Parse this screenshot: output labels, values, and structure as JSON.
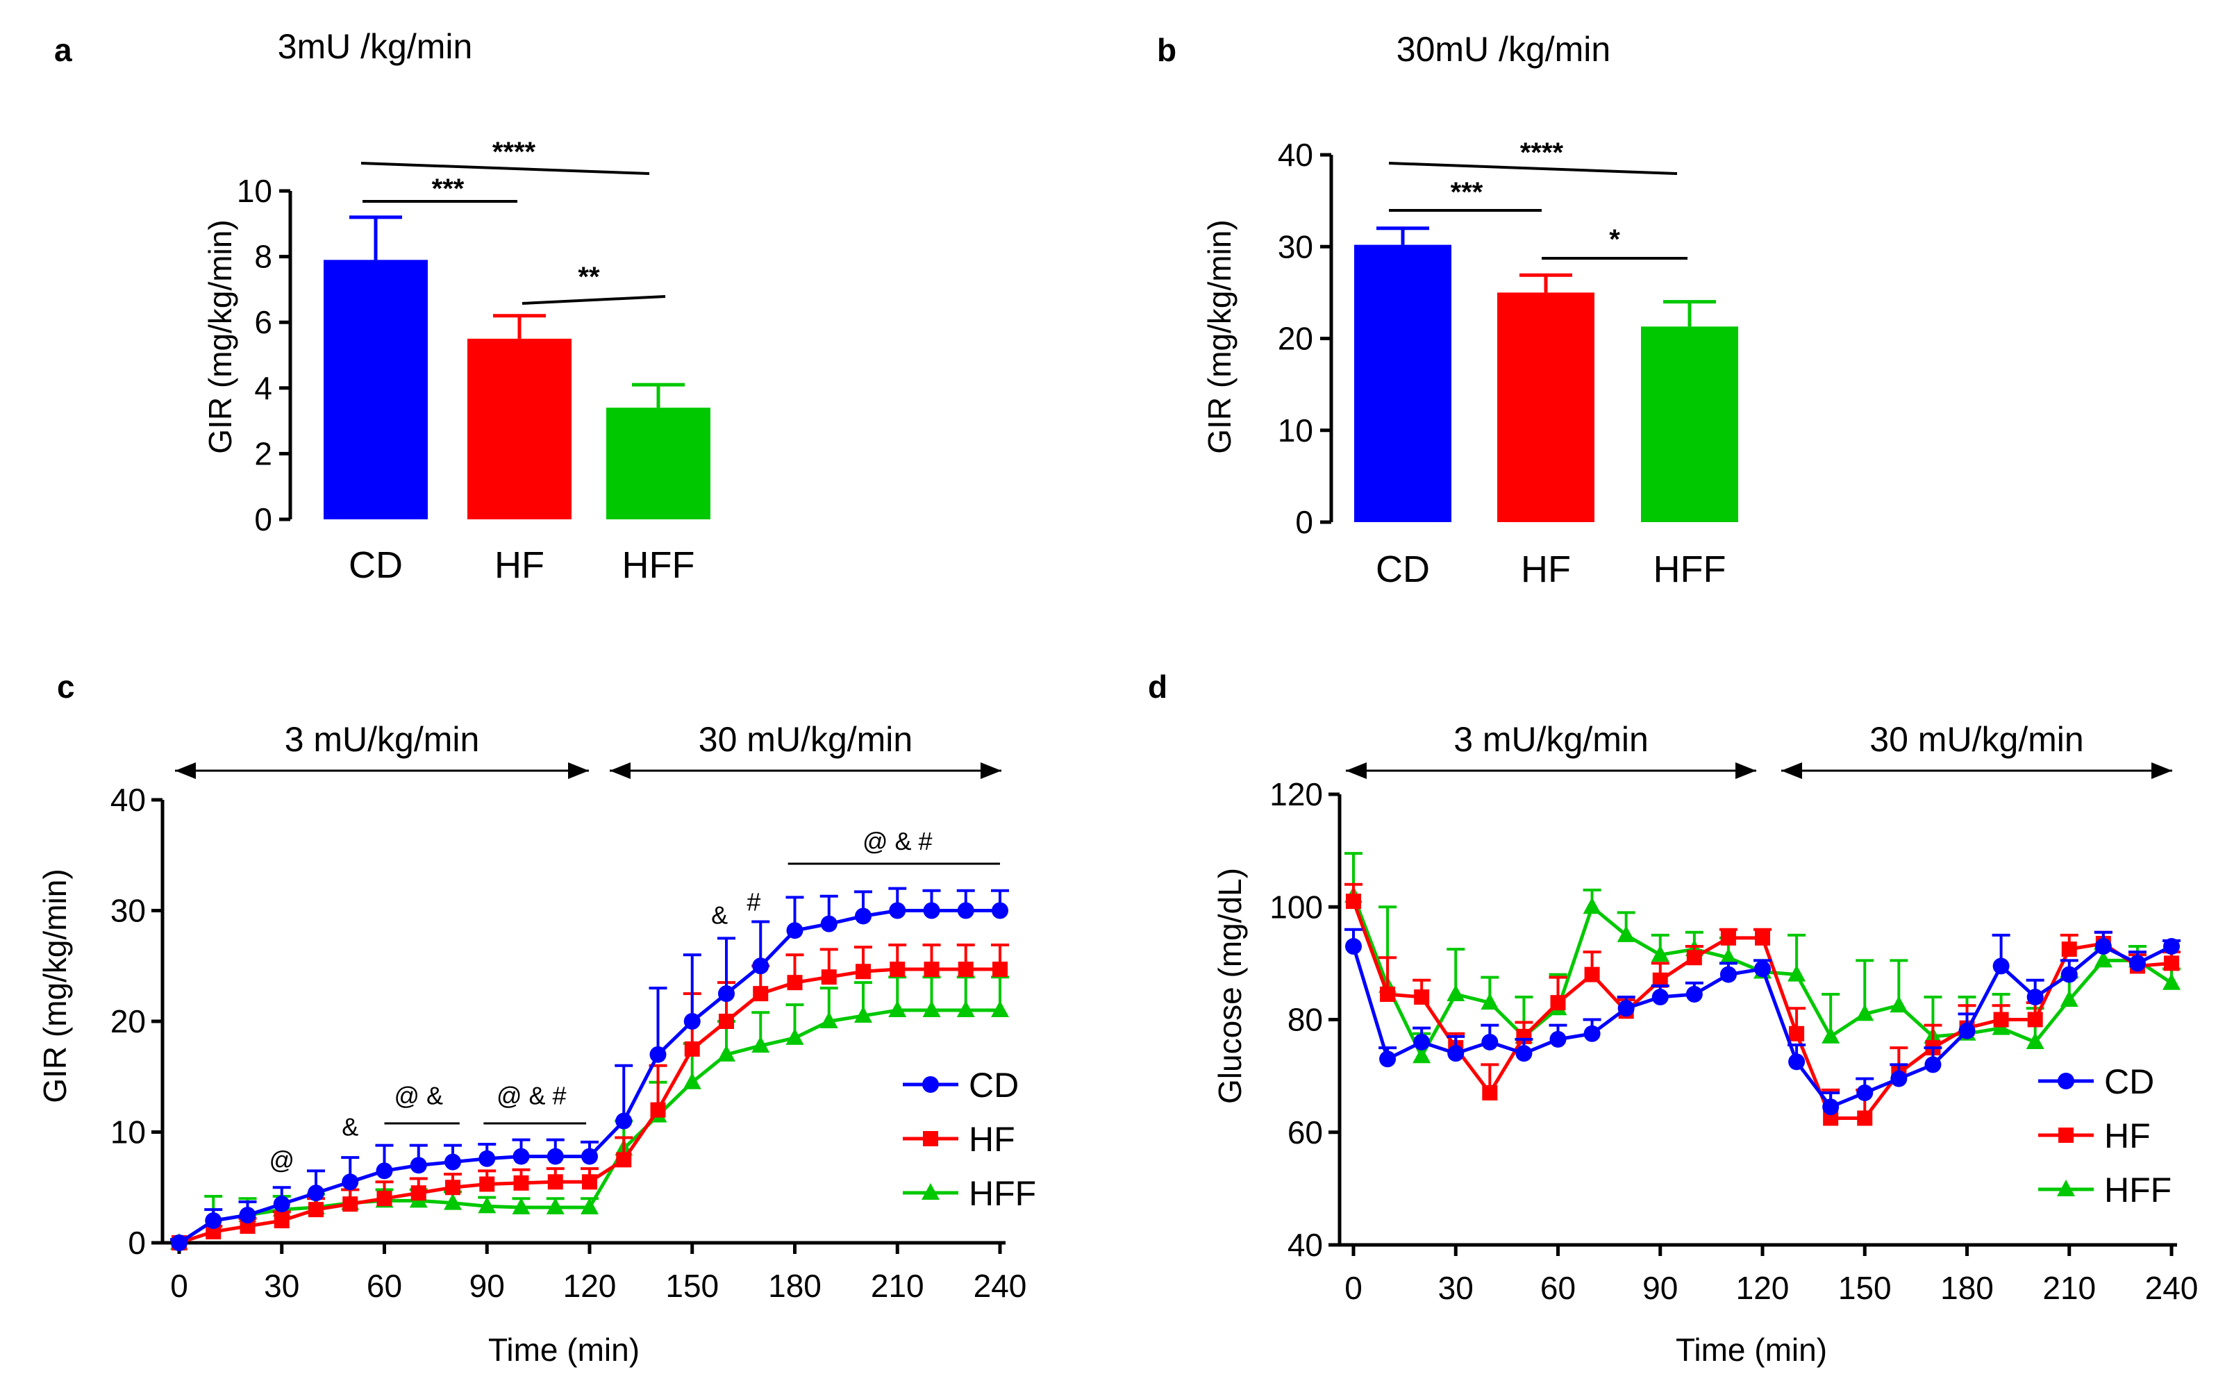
{
  "colors": {
    "CD": "#0000ff",
    "HF": "#ff0000",
    "HFF": "#00c800"
  },
  "chart_data": [
    {
      "panel": "a",
      "type": "bar",
      "title": "3mU /kg/min",
      "ylabel": "GIR (mg/kg/min)",
      "xlabel": "",
      "ylim": [
        0,
        10
      ],
      "yticks": [
        "0",
        "2",
        "4",
        "6",
        "8",
        "10"
      ],
      "categories": [
        "CD",
        "HF",
        "HFF"
      ],
      "values": [
        7.9,
        5.5,
        3.4
      ],
      "errors": [
        1.3,
        0.7,
        0.7
      ],
      "significance": [
        {
          "from": 0,
          "to": 1,
          "label": "***"
        },
        {
          "from": 0,
          "to": 2,
          "label": "****"
        },
        {
          "from": 1,
          "to": 2,
          "label": "**"
        }
      ]
    },
    {
      "panel": "b",
      "type": "bar",
      "title": "30mU /kg/min",
      "ylabel": "GIR (mg/kg/min)",
      "xlabel": "",
      "ylim": [
        0,
        40
      ],
      "yticks": [
        "0",
        "10",
        "20",
        "30",
        "40"
      ],
      "categories": [
        "CD",
        "HF",
        "HFF"
      ],
      "values": [
        30.2,
        25,
        21.3
      ],
      "errors": [
        1.8,
        1.9,
        2.7
      ],
      "significance": [
        {
          "from": 0,
          "to": 1,
          "label": "***"
        },
        {
          "from": 0,
          "to": 2,
          "label": "****"
        },
        {
          "from": 1,
          "to": 2,
          "label": "*"
        }
      ]
    },
    {
      "panel": "c",
      "type": "line",
      "title": "",
      "xlabel": "Time (min)",
      "ylabel": "GIR (mg/kg/min)",
      "xlim": [
        0,
        240
      ],
      "ylim": [
        0,
        40
      ],
      "xticks": [
        "0",
        "30",
        "60",
        "90",
        "120",
        "150",
        "180",
        "210",
        "240"
      ],
      "yticks": [
        "0",
        "10",
        "20",
        "30",
        "40"
      ],
      "phases": [
        {
          "label": "3 mU/kg/min",
          "from": 0,
          "to": 120
        },
        {
          "label": "30 mU/kg/min",
          "from": 125,
          "to": 240
        }
      ],
      "x": [
        0,
        10,
        20,
        30,
        40,
        50,
        60,
        70,
        80,
        90,
        100,
        110,
        120,
        130,
        140,
        150,
        160,
        170,
        180,
        190,
        200,
        210,
        220,
        230,
        240
      ],
      "series": [
        {
          "name": "CD",
          "values": [
            0,
            2,
            2.5,
            3.5,
            4.5,
            5.5,
            6.5,
            7,
            7.3,
            7.6,
            7.8,
            7.8,
            7.8,
            11,
            17,
            20,
            22.5,
            25,
            28.2,
            28.8,
            29.5,
            30,
            30,
            30,
            30
          ],
          "errors": [
            0.3,
            1,
            1.2,
            1.5,
            2,
            2.2,
            2.3,
            1.8,
            1.5,
            1.3,
            1.5,
            1.5,
            1.3,
            5,
            6,
            6,
            5,
            4,
            3,
            2.5,
            2.2,
            2,
            1.8,
            1.8,
            1.8
          ]
        },
        {
          "name": "HF",
          "values": [
            0,
            1,
            1.5,
            2,
            3,
            3.5,
            4,
            4.5,
            5,
            5.3,
            5.4,
            5.5,
            5.5,
            7.5,
            12,
            17.5,
            20,
            22.5,
            23.5,
            24,
            24.5,
            24.7,
            24.7,
            24.7,
            24.7
          ],
          "errors": [
            0.3,
            0.5,
            0.7,
            0.8,
            1,
            1.3,
            1.5,
            1.3,
            1.2,
            1.2,
            1.2,
            1.2,
            1.2,
            2,
            4,
            5,
            3.5,
            2.5,
            2.5,
            2.5,
            2.2,
            2.2,
            2.2,
            2.2,
            2.2
          ]
        },
        {
          "name": "HFF",
          "values": [
            0,
            2,
            2.5,
            3,
            3.2,
            3.6,
            3.8,
            3.8,
            3.6,
            3.3,
            3.2,
            3.2,
            3.2,
            8.5,
            11.5,
            14.5,
            17,
            17.8,
            18.5,
            20,
            20.5,
            21,
            21,
            21,
            21
          ],
          "errors": [
            0.3,
            2.2,
            1.5,
            1.2,
            1.2,
            1.2,
            1,
            1,
            1,
            0.8,
            0.8,
            0.8,
            0.8,
            2.5,
            3,
            3.5,
            3,
            3,
            3,
            3,
            3,
            3,
            3,
            3,
            3
          ]
        }
      ],
      "annotations": [
        {
          "x": 30,
          "y": 6.7,
          "label": "@"
        },
        {
          "x": 50,
          "y": 9.7,
          "label": "&"
        },
        {
          "x": 70,
          "y": 12.5,
          "label": "@ &"
        },
        {
          "x": 103,
          "y": 12.5,
          "label": "@ & #"
        },
        {
          "x": 158,
          "y": 28.8,
          "label": "&"
        },
        {
          "x": 168,
          "y": 30,
          "label": "#"
        },
        {
          "x": 210,
          "y": 35.5,
          "label": "@ & #"
        }
      ],
      "annotation_bars": [
        [
          60,
          82
        ],
        [
          89,
          119
        ],
        [
          178,
          240
        ]
      ],
      "legend": [
        "CD",
        "HF",
        "HFF"
      ],
      "legend_position": "lower-right"
    },
    {
      "panel": "d",
      "type": "line",
      "title": "",
      "xlabel": "Time (min)",
      "ylabel": "Glucose (mg/dL)",
      "xlim": [
        0,
        240
      ],
      "ylim": [
        40,
        120
      ],
      "xticks": [
        "0",
        "30",
        "60",
        "90",
        "120",
        "150",
        "180",
        "210",
        "240"
      ],
      "yticks": [
        "40",
        "60",
        "80",
        "100",
        "120"
      ],
      "phases": [
        {
          "label": "3 mU/kg/min",
          "from": 0,
          "to": 115
        },
        {
          "label": "30 mU/kg/min",
          "from": 125,
          "to": 240
        }
      ],
      "x": [
        0,
        10,
        20,
        30,
        40,
        50,
        60,
        70,
        80,
        90,
        100,
        110,
        120,
        130,
        140,
        150,
        160,
        170,
        180,
        190,
        200,
        210,
        220,
        230,
        240
      ],
      "series": [
        {
          "name": "CD",
          "values": [
            93,
            73,
            76,
            74,
            76,
            74,
            76.5,
            77.5,
            82,
            84,
            84.5,
            88,
            89,
            72.5,
            64.5,
            67,
            69.5,
            72,
            78,
            89.5,
            84,
            88,
            93,
            90,
            93
          ],
          "errors": [
            3,
            2,
            2.5,
            3,
            3,
            2.5,
            2.5,
            2.5,
            2,
            2,
            2,
            2,
            1.5,
            3,
            2.5,
            2.5,
            2.5,
            3,
            3,
            5.5,
            3,
            2.5,
            2.5,
            2,
            1
          ]
        },
        {
          "name": "HF",
          "values": [
            101,
            84.5,
            84,
            75,
            67,
            77,
            83,
            88,
            81.5,
            87,
            91,
            94.5,
            94.5,
            77.5,
            62.5,
            62.5,
            70.5,
            75,
            78.5,
            80,
            80,
            92.5,
            93.5,
            89.5,
            90
          ],
          "errors": [
            3,
            6.5,
            3,
            2.5,
            5,
            2.5,
            4.5,
            4,
            2,
            3,
            2,
            1.5,
            1.5,
            4.5,
            5,
            5,
            4.5,
            4,
            4,
            2.5,
            3,
            2.5,
            2,
            2,
            2
          ]
        },
        {
          "name": "HFF",
          "values": [
            102,
            86,
            73.5,
            84.5,
            83,
            77,
            82,
            100,
            95,
            91.5,
            92.5,
            91,
            88.5,
            88,
            77,
            81,
            82.5,
            77,
            77.5,
            78.5,
            76,
            83.5,
            90.5,
            90.5,
            86.5
          ],
          "errors": [
            7.5,
            14,
            4,
            8,
            4.5,
            7,
            6,
            3,
            4,
            3.5,
            3,
            3.5,
            2,
            7,
            7.5,
            9.5,
            8,
            7,
            6.5,
            6,
            6,
            4,
            2,
            2.5,
            2.5
          ]
        }
      ],
      "legend": [
        "CD",
        "HF",
        "HFF"
      ],
      "legend_position": "lower-right"
    }
  ]
}
